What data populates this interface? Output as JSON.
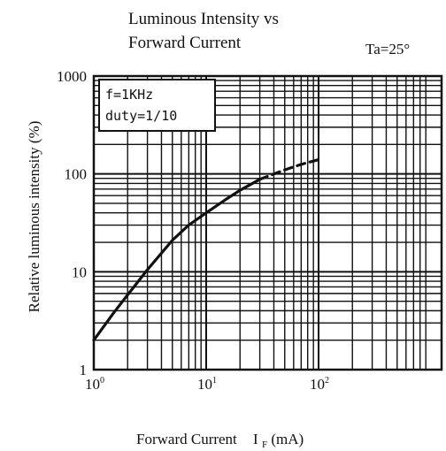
{
  "chart_data": {
    "type": "line",
    "title_lines": [
      "Luminous Intensity vs",
      "Forward Current"
    ],
    "condition": "Ta=25°",
    "ylabel": "Relative luminous intensity (%)",
    "xlabel_prefix": "Forward Current",
    "xlabel_symbol": "I",
    "xlabel_sub": "F",
    "xlabel_unit": "(mA)",
    "x_scale": "log",
    "y_scale": "log",
    "xlim": [
      1,
      500
    ],
    "ylim": [
      1,
      1000
    ],
    "x_ticks": [
      {
        "base": "10",
        "exp": "0",
        "value": 1
      },
      {
        "base": "10",
        "exp": "1",
        "value": 10
      },
      {
        "base": "10",
        "exp": "2",
        "value": 100
      }
    ],
    "y_ticks": [
      {
        "label": "1",
        "value": 1
      },
      {
        "label": "10",
        "value": 10
      },
      {
        "label": "100",
        "value": 100
      },
      {
        "label": "1000",
        "value": 1000
      }
    ],
    "grid": true,
    "legend_box": [
      "f=1KHz",
      "duty=1/10"
    ],
    "legend_placement": "top-left",
    "series": [
      {
        "style": "solid",
        "x": [
          1,
          1.5,
          2,
          3,
          5,
          7,
          10,
          15,
          20,
          30
        ],
        "y": [
          2,
          3.8,
          5.8,
          10.5,
          21,
          30,
          40,
          55,
          68,
          88
        ]
      },
      {
        "style": "dashed",
        "x": [
          30,
          40,
          50,
          70,
          100
        ],
        "y": [
          88,
          100,
          110,
          125,
          140
        ]
      }
    ]
  }
}
